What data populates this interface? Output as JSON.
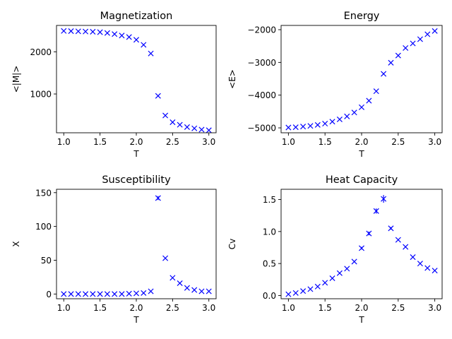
{
  "chart_data": [
    {
      "type": "scatter",
      "title": "Magnetization",
      "xlabel": "T",
      "ylabel": "<|M|>",
      "xlim": [
        0.9,
        3.1
      ],
      "ylim": [
        80,
        2625
      ],
      "xticks": [
        1.0,
        1.5,
        2.0,
        2.5,
        3.0
      ],
      "xtick_labels": [
        "1.0",
        "1.5",
        "2.0",
        "2.5",
        "3.0"
      ],
      "yticks": [
        1000,
        2000
      ],
      "ytick_labels": [
        "1000",
        "2000"
      ],
      "marker": "x",
      "color": "#0000ff",
      "x": [
        1.0,
        1.1,
        1.2,
        1.3,
        1.4,
        1.5,
        1.6,
        1.7,
        1.8,
        1.9,
        2.0,
        2.1,
        2.2,
        2.3,
        2.4,
        2.5,
        2.6,
        2.7,
        2.8,
        2.9,
        3.0
      ],
      "y": [
        2495,
        2490,
        2485,
        2480,
        2475,
        2465,
        2445,
        2420,
        2385,
        2350,
        2285,
        2165,
        1960,
        955,
        490,
        330,
        270,
        215,
        185,
        155,
        140
      ],
      "errors": [
        0,
        0,
        0,
        0,
        0,
        0,
        0,
        0,
        0,
        0,
        0,
        0,
        0,
        0,
        0,
        0,
        0,
        0,
        0,
        0,
        0
      ]
    },
    {
      "type": "scatter",
      "title": "Energy",
      "xlabel": "T",
      "ylabel": "<E>",
      "xlim": [
        0.9,
        3.1
      ],
      "ylim": [
        -5150,
        -1870
      ],
      "xticks": [
        1.0,
        1.5,
        2.0,
        2.5,
        3.0
      ],
      "xtick_labels": [
        "1.0",
        "1.5",
        "2.0",
        "2.5",
        "3.0"
      ],
      "yticks": [
        -5000,
        -4000,
        -3000,
        -2000
      ],
      "ytick_labels": [
        "−5000",
        "−4000",
        "−3000",
        "−2000"
      ],
      "marker": "x",
      "color": "#0000ff",
      "x": [
        1.0,
        1.1,
        1.2,
        1.3,
        1.4,
        1.5,
        1.6,
        1.7,
        1.8,
        1.9,
        2.0,
        2.1,
        2.2,
        2.3,
        2.4,
        2.5,
        2.6,
        2.7,
        2.8,
        2.9,
        3.0
      ],
      "y": [
        -4990,
        -4980,
        -4960,
        -4940,
        -4910,
        -4870,
        -4810,
        -4740,
        -4650,
        -4530,
        -4370,
        -4170,
        -3880,
        -3350,
        -3010,
        -2790,
        -2560,
        -2420,
        -2290,
        -2140,
        -2040
      ],
      "errors": [
        0,
        0,
        0,
        0,
        0,
        0,
        0,
        0,
        0,
        0,
        0,
        0,
        0,
        0,
        0,
        0,
        0,
        0,
        0,
        0,
        0
      ]
    },
    {
      "type": "scatter",
      "title": "Susceptibility",
      "xlabel": "T",
      "ylabel": "X",
      "xlim": [
        0.9,
        3.1
      ],
      "ylim": [
        -7,
        155
      ],
      "xticks": [
        1.0,
        1.5,
        2.0,
        2.5,
        3.0
      ],
      "xtick_labels": [
        "1.0",
        "1.5",
        "2.0",
        "2.5",
        "3.0"
      ],
      "yticks": [
        0,
        50,
        100,
        150
      ],
      "ytick_labels": [
        "0",
        "50",
        "100",
        "150"
      ],
      "marker": "x",
      "color": "#0000ff",
      "x": [
        1.0,
        1.1,
        1.2,
        1.3,
        1.4,
        1.5,
        1.6,
        1.7,
        1.8,
        1.9,
        2.0,
        2.1,
        2.2,
        2.3,
        2.4,
        2.5,
        2.6,
        2.7,
        2.8,
        2.9,
        3.0
      ],
      "y": [
        0,
        0,
        0,
        0,
        0,
        0,
        0,
        0,
        0,
        0.5,
        1,
        1.5,
        4,
        142,
        53,
        24,
        16,
        9,
        6,
        4,
        4
      ],
      "errors": [
        0,
        0,
        0,
        0,
        0,
        0,
        0,
        0,
        0,
        0,
        0,
        0,
        0,
        3,
        0,
        0,
        0,
        0,
        0,
        0,
        0
      ]
    },
    {
      "type": "scatter",
      "title": "Heat Capacity",
      "xlabel": "T",
      "ylabel": "Cv",
      "xlim": [
        0.9,
        3.1
      ],
      "ylim": [
        -0.05,
        1.66
      ],
      "xticks": [
        1.0,
        1.5,
        2.0,
        2.5,
        3.0
      ],
      "xtick_labels": [
        "1.0",
        "1.5",
        "2.0",
        "2.5",
        "3.0"
      ],
      "yticks": [
        0.0,
        0.5,
        1.0,
        1.5
      ],
      "ytick_labels": [
        "0.0",
        "0.5",
        "1.0",
        "1.5"
      ],
      "marker": "x",
      "color": "#0000ff",
      "x": [
        1.0,
        1.1,
        1.2,
        1.3,
        1.4,
        1.5,
        1.6,
        1.7,
        1.8,
        1.9,
        2.0,
        2.1,
        2.2,
        2.3,
        2.4,
        2.5,
        2.6,
        2.7,
        2.8,
        2.9,
        3.0
      ],
      "y": [
        0.02,
        0.04,
        0.07,
        0.1,
        0.14,
        0.2,
        0.27,
        0.35,
        0.42,
        0.53,
        0.74,
        0.97,
        1.32,
        1.51,
        1.05,
        0.87,
        0.76,
        0.6,
        0.5,
        0.43,
        0.39
      ],
      "errors": [
        0,
        0,
        0,
        0,
        0,
        0,
        0,
        0,
        0,
        0,
        0.02,
        0.03,
        0.04,
        0.06,
        0.02,
        0.01,
        0,
        0,
        0,
        0,
        0
      ]
    }
  ]
}
